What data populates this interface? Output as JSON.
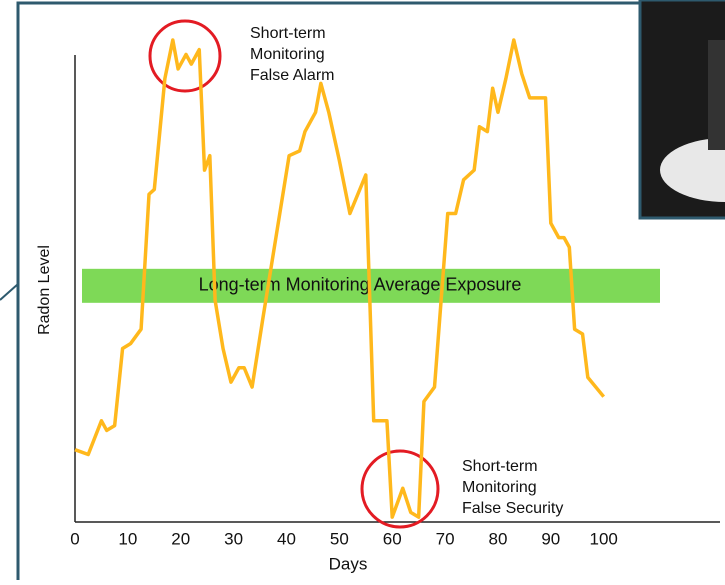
{
  "chart_data": {
    "type": "line",
    "xlabel": "Days",
    "ylabel": "Radon Level",
    "xlim": [
      0,
      122
    ],
    "xticks": [
      0,
      10,
      20,
      30,
      40,
      50,
      60,
      70,
      80,
      90,
      100
    ],
    "ylim": [
      0,
      100
    ],
    "series": [
      {
        "color": "#ffb81c",
        "x": [
          0,
          2.5,
          5,
          6,
          7.5,
          9,
          10.5,
          12.5,
          14,
          15,
          17,
          18.5,
          19.5,
          21,
          22,
          23.5,
          24.5,
          25.5,
          26.5,
          28,
          29.5,
          31,
          32,
          33.5,
          35.5,
          38,
          40.5,
          42.5,
          43.5,
          45.5,
          46.5,
          48,
          50,
          52,
          55,
          56.5,
          59,
          60,
          62,
          63.5,
          65,
          66,
          68,
          70.5,
          72,
          73.5,
          75.5,
          76.5,
          78,
          79,
          80,
          81.5,
          83,
          84.5,
          86,
          89,
          90,
          91.5,
          92.5,
          93.5,
          94.5,
          96,
          97,
          100
        ],
        "values": [
          15,
          14,
          21,
          19,
          20,
          36,
          37,
          40,
          68,
          69,
          92,
          100,
          94,
          97,
          95,
          98,
          73,
          76,
          46,
          36,
          29,
          32,
          32,
          28,
          42,
          59,
          76,
          77,
          81,
          85,
          91,
          85,
          75,
          64,
          72,
          21,
          21,
          1,
          7,
          2,
          1,
          25,
          28,
          64,
          64,
          71,
          73,
          82,
          81,
          90,
          85,
          92,
          100,
          93,
          88,
          88,
          62,
          59,
          59,
          57,
          40,
          39,
          30,
          26
        ]
      }
    ],
    "annotations": [
      {
        "lines": [
          "Short-term",
          "Monitoring",
          "False Alarm"
        ]
      },
      {
        "lines": [
          "Short-term",
          "Monitoring",
          "False Security"
        ]
      },
      {
        "text": "Long-term Monitoring Average Exposure",
        "value": 49,
        "color": "#7ed957"
      }
    ]
  }
}
